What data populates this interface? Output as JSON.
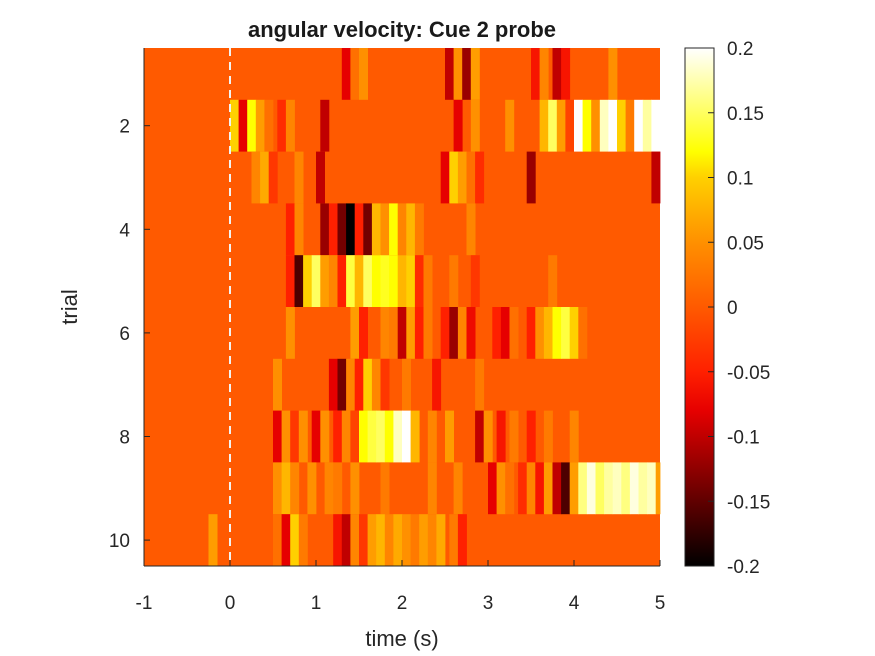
{
  "chart_data": {
    "type": "heatmap",
    "title": "angular velocity: Cue 2 probe",
    "xlabel": "time (s)",
    "ylabel": "trial",
    "xlim": [
      -1,
      5
    ],
    "ylim": [
      0.5,
      10.5
    ],
    "xticks": [
      "-1",
      "0",
      "1",
      "2",
      "3",
      "4",
      "5"
    ],
    "yticks": [
      "2",
      "4",
      "6",
      "8",
      "10"
    ],
    "colormap": "hot",
    "color_limits": [
      -0.2,
      0.2
    ],
    "colorbar_ticks": [
      "0.2",
      "0.15",
      "0.1",
      "0.05",
      "0",
      "-0.05",
      "-0.1",
      "-0.15",
      "-0.2"
    ],
    "baseline_color": "#ff5a00",
    "marker_line": {
      "x": 0,
      "style": "dashed",
      "color": "#f2f2f2"
    },
    "trials": [
      {
        "trial": 1,
        "segments": [
          [
            1.3,
            1.4,
            -0.08
          ],
          [
            1.4,
            1.5,
            0.02
          ],
          [
            1.5,
            1.6,
            0.05
          ],
          [
            2.5,
            2.6,
            -0.1
          ],
          [
            2.6,
            2.7,
            0.05
          ],
          [
            2.7,
            2.8,
            -0.12
          ],
          [
            2.8,
            2.9,
            0.06
          ],
          [
            3.5,
            3.6,
            -0.06
          ],
          [
            3.6,
            3.7,
            0.04
          ],
          [
            3.75,
            3.85,
            -0.1
          ],
          [
            3.85,
            3.95,
            -0.06
          ],
          [
            4.4,
            4.5,
            0.05
          ]
        ]
      },
      {
        "trial": 2,
        "segments": [
          [
            0.0,
            0.1,
            0.1
          ],
          [
            0.1,
            0.2,
            -0.08
          ],
          [
            0.2,
            0.3,
            0.12
          ],
          [
            0.3,
            0.4,
            0.06
          ],
          [
            0.4,
            0.5,
            0.02
          ],
          [
            0.55,
            0.65,
            -0.04
          ],
          [
            0.65,
            0.75,
            0.04
          ],
          [
            1.05,
            1.15,
            -0.1
          ],
          [
            2.6,
            2.7,
            -0.08
          ],
          [
            2.8,
            2.9,
            0.05
          ],
          [
            3.2,
            3.3,
            0.05
          ],
          [
            3.6,
            3.7,
            0.08
          ],
          [
            3.7,
            3.8,
            0.15
          ],
          [
            3.8,
            3.9,
            0.06
          ],
          [
            3.9,
            4.0,
            -0.02
          ],
          [
            4.0,
            4.1,
            0.2
          ],
          [
            4.1,
            4.2,
            0.12
          ],
          [
            4.2,
            4.3,
            0.05
          ],
          [
            4.3,
            4.4,
            0.18
          ],
          [
            4.4,
            4.5,
            0.2
          ],
          [
            4.5,
            4.6,
            0.1
          ],
          [
            4.6,
            4.7,
            0.03
          ],
          [
            4.7,
            4.8,
            0.2
          ],
          [
            4.8,
            4.9,
            0.17
          ],
          [
            4.9,
            5.0,
            0.2
          ]
        ]
      },
      {
        "trial": 3,
        "segments": [
          [
            0.25,
            0.35,
            0.04
          ],
          [
            0.35,
            0.45,
            0.07
          ],
          [
            0.45,
            0.55,
            -0.03
          ],
          [
            0.75,
            0.85,
            0.04
          ],
          [
            1.0,
            1.1,
            -0.1
          ],
          [
            2.45,
            2.55,
            -0.08
          ],
          [
            2.55,
            2.65,
            0.1
          ],
          [
            2.65,
            2.75,
            0.06
          ],
          [
            2.75,
            2.85,
            0.02
          ],
          [
            2.85,
            2.95,
            -0.04
          ],
          [
            3.45,
            3.55,
            -0.12
          ],
          [
            4.9,
            5.0,
            -0.1
          ]
        ]
      },
      {
        "trial": 4,
        "segments": [
          [
            0.65,
            0.75,
            -0.05
          ],
          [
            0.75,
            0.85,
            0.04
          ],
          [
            1.05,
            1.15,
            -0.12
          ],
          [
            1.15,
            1.25,
            -0.05
          ],
          [
            1.25,
            1.35,
            -0.14
          ],
          [
            1.35,
            1.45,
            -0.2
          ],
          [
            1.45,
            1.55,
            -0.05
          ],
          [
            1.55,
            1.65,
            -0.14
          ],
          [
            1.65,
            1.75,
            0.08
          ],
          [
            1.75,
            1.85,
            0.05
          ],
          [
            1.85,
            1.95,
            0.12
          ],
          [
            1.95,
            2.05,
            0.04
          ],
          [
            2.05,
            2.15,
            0.08
          ],
          [
            2.15,
            2.25,
            0.03
          ],
          [
            2.75,
            2.85,
            0.04
          ]
        ]
      },
      {
        "trial": 5,
        "segments": [
          [
            0.65,
            0.75,
            -0.05
          ],
          [
            0.75,
            0.85,
            -0.16
          ],
          [
            0.85,
            0.95,
            0.1
          ],
          [
            0.95,
            1.05,
            0.15
          ],
          [
            1.05,
            1.15,
            0.06
          ],
          [
            1.15,
            1.25,
            0.04
          ],
          [
            1.25,
            1.35,
            -0.05
          ],
          [
            1.35,
            1.45,
            0.14
          ],
          [
            1.45,
            1.55,
            0.08
          ],
          [
            1.55,
            1.65,
            0.15
          ],
          [
            1.65,
            1.75,
            0.12
          ],
          [
            1.75,
            1.85,
            0.13
          ],
          [
            1.85,
            1.95,
            0.12
          ],
          [
            1.95,
            2.05,
            0.08
          ],
          [
            2.05,
            2.15,
            0.1
          ],
          [
            2.15,
            2.25,
            -0.04
          ],
          [
            2.25,
            2.35,
            0.03
          ],
          [
            2.55,
            2.65,
            0.03
          ],
          [
            2.8,
            2.9,
            -0.03
          ],
          [
            3.7,
            3.8,
            0.03
          ]
        ]
      },
      {
        "trial": 6,
        "segments": [
          [
            0.65,
            0.75,
            0.05
          ],
          [
            1.4,
            1.5,
            0.06
          ],
          [
            1.5,
            1.6,
            -0.05
          ],
          [
            1.75,
            1.85,
            0.04
          ],
          [
            1.85,
            1.95,
            0.03
          ],
          [
            1.95,
            2.05,
            -0.1
          ],
          [
            2.05,
            2.15,
            0.06
          ],
          [
            2.15,
            2.25,
            -0.05
          ],
          [
            2.25,
            2.35,
            0.03
          ],
          [
            2.45,
            2.55,
            -0.05
          ],
          [
            2.55,
            2.65,
            -0.12
          ],
          [
            2.65,
            2.75,
            0.04
          ],
          [
            2.75,
            2.85,
            -0.07
          ],
          [
            3.05,
            3.15,
            -0.05
          ],
          [
            3.15,
            3.25,
            -0.08
          ],
          [
            3.25,
            3.35,
            0.02
          ],
          [
            3.45,
            3.55,
            -0.05
          ],
          [
            3.55,
            3.65,
            0.05
          ],
          [
            3.65,
            3.75,
            0.08
          ],
          [
            3.75,
            3.85,
            0.12
          ],
          [
            3.85,
            3.95,
            0.14
          ],
          [
            3.95,
            4.05,
            0.1
          ],
          [
            4.05,
            4.15,
            0.02
          ]
        ]
      },
      {
        "trial": 7,
        "segments": [
          [
            0.5,
            0.6,
            0.05
          ],
          [
            1.15,
            1.25,
            -0.08
          ],
          [
            1.25,
            1.35,
            -0.14
          ],
          [
            1.35,
            1.45,
            0.04
          ],
          [
            1.45,
            1.55,
            -0.05
          ],
          [
            1.55,
            1.65,
            0.1
          ],
          [
            1.65,
            1.75,
            0.04
          ],
          [
            1.75,
            1.85,
            -0.03
          ],
          [
            2.0,
            2.1,
            0.03
          ],
          [
            2.35,
            2.45,
            -0.06
          ],
          [
            2.85,
            2.95,
            0.03
          ]
        ]
      },
      {
        "trial": 8,
        "segments": [
          [
            0.5,
            0.6,
            -0.08
          ],
          [
            0.6,
            0.7,
            0.05
          ],
          [
            0.7,
            0.8,
            -0.03
          ],
          [
            0.8,
            0.9,
            0.05
          ],
          [
            0.95,
            1.05,
            -0.08
          ],
          [
            1.05,
            1.15,
            0.05
          ],
          [
            1.2,
            1.3,
            -0.05
          ],
          [
            1.3,
            1.4,
            0.04
          ],
          [
            1.4,
            1.5,
            -0.02
          ],
          [
            1.5,
            1.6,
            0.12
          ],
          [
            1.6,
            1.7,
            0.14
          ],
          [
            1.7,
            1.8,
            0.15
          ],
          [
            1.8,
            1.9,
            0.12
          ],
          [
            1.9,
            2.0,
            0.18
          ],
          [
            2.0,
            2.1,
            0.2
          ],
          [
            2.1,
            2.2,
            0.08
          ],
          [
            2.3,
            2.4,
            0.04
          ],
          [
            2.5,
            2.6,
            0.06
          ],
          [
            2.85,
            2.95,
            -0.1
          ],
          [
            2.95,
            3.05,
            0.05
          ],
          [
            3.1,
            3.2,
            -0.06
          ],
          [
            3.25,
            3.35,
            0.03
          ],
          [
            3.45,
            3.55,
            -0.05
          ],
          [
            3.65,
            3.75,
            0.03
          ],
          [
            3.95,
            4.05,
            0.04
          ]
        ]
      },
      {
        "trial": 9,
        "segments": [
          [
            0.5,
            0.6,
            0.05
          ],
          [
            0.6,
            0.7,
            0.08
          ],
          [
            0.7,
            0.8,
            0.04
          ],
          [
            0.9,
            1.0,
            0.05
          ],
          [
            1.1,
            1.2,
            0.04
          ],
          [
            1.2,
            1.3,
            0.03
          ],
          [
            1.4,
            1.5,
            0.05
          ],
          [
            1.75,
            1.85,
            0.03
          ],
          [
            2.3,
            2.4,
            0.04
          ],
          [
            2.6,
            2.7,
            0.04
          ],
          [
            3.0,
            3.1,
            -0.08
          ],
          [
            3.1,
            3.2,
            0.05
          ],
          [
            3.2,
            3.3,
            0.02
          ],
          [
            3.35,
            3.45,
            -0.04
          ],
          [
            3.45,
            3.55,
            0.04
          ],
          [
            3.55,
            3.65,
            -0.06
          ],
          [
            3.65,
            3.75,
            0.06
          ],
          [
            3.75,
            3.85,
            -0.1
          ],
          [
            3.85,
            3.95,
            -0.16
          ],
          [
            3.95,
            4.05,
            0.06
          ],
          [
            4.05,
            4.15,
            0.16
          ],
          [
            4.15,
            4.25,
            0.19
          ],
          [
            4.25,
            4.35,
            0.15
          ],
          [
            4.35,
            4.45,
            0.17
          ],
          [
            4.45,
            4.55,
            0.18
          ],
          [
            4.55,
            4.65,
            0.16
          ],
          [
            4.65,
            4.75,
            0.19
          ],
          [
            4.75,
            4.85,
            0.17
          ],
          [
            4.85,
            4.95,
            0.18
          ],
          [
            4.95,
            5.0,
            0.06
          ]
        ]
      },
      {
        "trial": 10,
        "segments": [
          [
            -0.25,
            -0.15,
            0.06
          ],
          [
            0.5,
            0.6,
            0.02
          ],
          [
            0.6,
            0.7,
            -0.08
          ],
          [
            0.7,
            0.8,
            0.1
          ],
          [
            0.8,
            0.9,
            0.03
          ],
          [
            1.2,
            1.3,
            -0.06
          ],
          [
            1.3,
            1.4,
            -0.1
          ],
          [
            1.4,
            1.5,
            0.04
          ],
          [
            1.5,
            1.6,
            -0.03
          ],
          [
            1.6,
            1.7,
            0.06
          ],
          [
            1.7,
            1.8,
            0.08
          ],
          [
            1.8,
            1.9,
            0.04
          ],
          [
            1.9,
            2.0,
            0.07
          ],
          [
            2.0,
            2.1,
            0.05
          ],
          [
            2.1,
            2.2,
            0.03
          ],
          [
            2.2,
            2.3,
            0.06
          ],
          [
            2.3,
            2.4,
            0.04
          ],
          [
            2.4,
            2.5,
            0.07
          ],
          [
            2.55,
            2.65,
            0.03
          ],
          [
            2.65,
            2.75,
            -0.05
          ]
        ]
      }
    ]
  }
}
